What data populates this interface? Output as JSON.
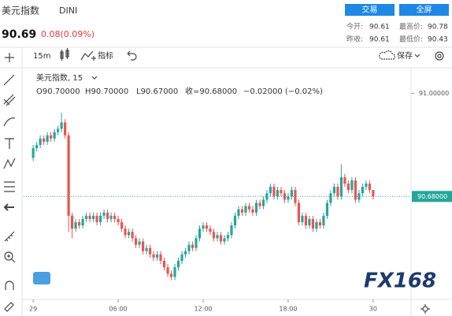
{
  "header": {
    "name": "美元指数",
    "code": "DINI",
    "price": "90.69",
    "change": "0.08(0.09%)",
    "buttons": [
      "交易",
      "全屏"
    ],
    "stats": [
      {
        "label": "今开:",
        "value": "90.61"
      },
      {
        "label": "最高价:",
        "value": "90.78"
      },
      {
        "label": "昨收:",
        "value": "90.61"
      },
      {
        "label": "最低价:",
        "value": "90.43"
      }
    ]
  },
  "toolbar": {
    "interval": "15m",
    "indicators": "指标",
    "save": "保存"
  },
  "watermark": "FX168",
  "chart_data": {
    "type": "candlestick",
    "legend": {
      "title": "美元指数, 15",
      "open": "O90.70000",
      "high": "H90.70000",
      "low": "L90.67000",
      "close": "收=90.68000",
      "change": "−0.02000 (−0.02%)"
    },
    "up_color": "#26a69a",
    "down_color": "#ef5350",
    "x": [
      0,
      1,
      2,
      3,
      4,
      5,
      6,
      7,
      8,
      9,
      10,
      11,
      12,
      13,
      14,
      15,
      16,
      17,
      18,
      19,
      20,
      21,
      22,
      23,
      24,
      25,
      26,
      27,
      28,
      29,
      30,
      31,
      32,
      33,
      34,
      35,
      36,
      37,
      38,
      39,
      40,
      41,
      42,
      43,
      44,
      45,
      46,
      47,
      48,
      49,
      50,
      51,
      52,
      53,
      54,
      55,
      56,
      57,
      58,
      59,
      60,
      61,
      62,
      63,
      64,
      65,
      66,
      67,
      68,
      69,
      70,
      71,
      72,
      73,
      74,
      75,
      76,
      77,
      78,
      79,
      80,
      81,
      82,
      83,
      84,
      85,
      86,
      87,
      88,
      89,
      90,
      91,
      92,
      93,
      94,
      95,
      96
    ],
    "open": [
      90.8,
      90.83,
      90.84,
      90.86,
      90.85,
      90.87,
      90.86,
      90.88,
      90.89,
      90.91,
      90.87,
      90.62,
      90.58,
      90.6,
      90.59,
      90.61,
      90.62,
      90.61,
      90.62,
      90.6,
      90.62,
      90.63,
      90.61,
      90.62,
      90.61,
      90.6,
      90.58,
      90.56,
      90.57,
      90.55,
      90.53,
      90.54,
      90.51,
      90.52,
      90.5,
      90.49,
      90.5,
      90.48,
      90.46,
      90.44,
      90.43,
      90.46,
      90.48,
      90.5,
      90.51,
      90.53,
      90.52,
      90.55,
      90.58,
      90.59,
      90.58,
      90.57,
      90.55,
      90.56,
      90.54,
      90.55,
      90.56,
      90.59,
      90.62,
      90.64,
      90.63,
      90.65,
      90.64,
      90.63,
      90.66,
      90.65,
      90.67,
      90.69,
      90.71,
      90.68,
      90.7,
      90.69,
      90.67,
      90.68,
      90.7,
      90.66,
      90.6,
      90.62,
      90.59,
      90.61,
      90.58,
      90.6,
      90.59,
      90.62,
      90.66,
      90.69,
      90.71,
      90.68,
      90.74,
      90.72,
      90.7,
      90.73,
      90.67,
      90.69,
      90.71,
      90.72,
      90.7
    ],
    "high": [
      90.84,
      90.85,
      90.87,
      90.87,
      90.88,
      90.88,
      90.89,
      90.9,
      90.94,
      90.92,
      90.88,
      90.63,
      90.61,
      90.61,
      90.62,
      90.63,
      90.63,
      90.63,
      90.63,
      90.63,
      90.64,
      90.64,
      90.63,
      90.63,
      90.62,
      90.61,
      90.59,
      90.58,
      90.58,
      90.56,
      90.55,
      90.55,
      90.53,
      90.53,
      90.51,
      90.51,
      90.51,
      90.49,
      90.47,
      90.45,
      90.47,
      90.49,
      90.51,
      90.52,
      90.54,
      90.54,
      90.56,
      90.59,
      90.6,
      90.6,
      90.59,
      90.58,
      90.57,
      90.57,
      90.56,
      90.57,
      90.6,
      90.63,
      90.65,
      90.65,
      90.66,
      90.66,
      90.65,
      90.67,
      90.67,
      90.68,
      90.7,
      90.72,
      90.72,
      90.71,
      90.71,
      90.7,
      90.69,
      90.71,
      90.71,
      90.67,
      90.63,
      90.63,
      90.62,
      90.62,
      90.61,
      90.61,
      90.63,
      90.67,
      90.7,
      90.72,
      90.72,
      90.78,
      90.75,
      90.73,
      90.74,
      90.74,
      90.7,
      90.72,
      90.73,
      90.73,
      90.7
    ],
    "low": [
      90.79,
      90.82,
      90.83,
      90.84,
      90.84,
      90.85,
      90.85,
      90.87,
      90.88,
      90.86,
      90.57,
      90.55,
      90.57,
      90.58,
      90.58,
      90.6,
      90.6,
      90.6,
      90.59,
      90.59,
      90.61,
      90.6,
      90.6,
      90.6,
      90.59,
      90.57,
      90.55,
      90.55,
      90.54,
      90.52,
      90.52,
      90.5,
      90.5,
      90.49,
      90.48,
      90.48,
      90.47,
      90.45,
      90.43,
      90.42,
      90.42,
      90.45,
      90.47,
      90.49,
      90.5,
      90.51,
      90.51,
      90.54,
      90.57,
      90.57,
      90.56,
      90.54,
      90.54,
      90.53,
      90.53,
      90.54,
      90.55,
      90.58,
      90.61,
      90.62,
      90.62,
      90.63,
      90.62,
      90.62,
      90.64,
      90.64,
      90.66,
      90.68,
      90.67,
      90.67,
      90.68,
      90.66,
      90.66,
      90.67,
      90.65,
      90.59,
      90.59,
      90.58,
      90.58,
      90.57,
      90.57,
      90.58,
      90.58,
      90.61,
      90.65,
      90.68,
      90.67,
      90.67,
      90.71,
      90.69,
      90.69,
      90.66,
      90.66,
      90.68,
      90.7,
      90.69,
      90.67
    ],
    "close": [
      90.83,
      90.84,
      90.86,
      90.85,
      90.87,
      90.86,
      90.88,
      90.89,
      90.91,
      90.87,
      90.62,
      90.58,
      90.6,
      90.59,
      90.61,
      90.62,
      90.61,
      90.62,
      90.6,
      90.62,
      90.63,
      90.61,
      90.62,
      90.61,
      90.6,
      90.58,
      90.56,
      90.57,
      90.55,
      90.53,
      90.54,
      90.51,
      90.52,
      90.5,
      90.49,
      90.5,
      90.48,
      90.46,
      90.44,
      90.43,
      90.46,
      90.48,
      90.5,
      90.51,
      90.53,
      90.52,
      90.55,
      90.58,
      90.59,
      90.58,
      90.57,
      90.55,
      90.56,
      90.54,
      90.55,
      90.56,
      90.59,
      90.62,
      90.64,
      90.63,
      90.65,
      90.64,
      90.63,
      90.66,
      90.65,
      90.67,
      90.69,
      90.71,
      90.68,
      90.7,
      90.69,
      90.67,
      90.68,
      90.7,
      90.66,
      90.6,
      90.62,
      90.59,
      90.61,
      90.58,
      90.6,
      90.59,
      90.62,
      90.66,
      90.69,
      90.71,
      90.68,
      90.74,
      90.72,
      90.7,
      90.73,
      90.67,
      90.69,
      90.71,
      90.72,
      90.7,
      90.68
    ],
    "xlim": [
      -2.7,
      106.7
    ],
    "xticks": [
      {
        "value": 0,
        "label": "29"
      },
      {
        "value": 24,
        "label": "06:00"
      },
      {
        "value": 48,
        "label": "12:00"
      },
      {
        "value": 72,
        "label": "18:00"
      },
      {
        "value": 96,
        "label": "30"
      }
    ],
    "ylim": [
      90.36,
      91.07
    ],
    "yticks": [
      {
        "value": 91,
        "label": "91.00000"
      }
    ],
    "last_price": {
      "value": 90.68,
      "label": "90.68000"
    },
    "grid": false
  }
}
